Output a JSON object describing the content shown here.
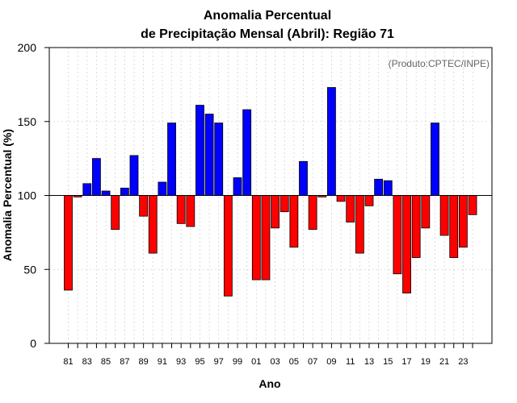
{
  "chart_data": {
    "type": "bar",
    "title_line1": "Anomalia Percentual",
    "title_line2": "de Precipitação Mensal (Abril): Região 71",
    "credit": "(Produto:CPTEC/INPE)",
    "xlabel": "Ano",
    "ylabel": "Anomalia Percentual (%)",
    "ylim": [
      0,
      200
    ],
    "yticks": [
      "0",
      "50",
      "100",
      "150",
      "200"
    ],
    "baseline": 100,
    "grid": true,
    "categories": [
      "81",
      "82",
      "83",
      "84",
      "85",
      "86",
      "87",
      "88",
      "89",
      "90",
      "91",
      "92",
      "93",
      "94",
      "95",
      "96",
      "97",
      "98",
      "99",
      "00",
      "01",
      "02",
      "03",
      "04",
      "05",
      "06",
      "07",
      "08",
      "09",
      "10",
      "11",
      "12",
      "13",
      "14",
      "15",
      "16",
      "17",
      "18",
      "19",
      "20",
      "21",
      "22",
      "23",
      "24"
    ],
    "xtick_labels": [
      "81",
      "83",
      "85",
      "87",
      "89",
      "91",
      "93",
      "95",
      "97",
      "99",
      "01",
      "03",
      "05",
      "07",
      "09",
      "11",
      "13",
      "15",
      "17",
      "19",
      "21",
      "23"
    ],
    "values": [
      36,
      99,
      108,
      125,
      103,
      77,
      105,
      127,
      86,
      61,
      109,
      149,
      81,
      79,
      161,
      155,
      149,
      32,
      112,
      158,
      43,
      43,
      78,
      89,
      65,
      123,
      77,
      99,
      173,
      96,
      82,
      61,
      93,
      111,
      110,
      47,
      34,
      58,
      78,
      149,
      73,
      58,
      65,
      87
    ],
    "colors": {
      "above": "#0000ff",
      "below": "#ff0000",
      "edge": "#000000",
      "grid": "#d3d3d3"
    }
  }
}
